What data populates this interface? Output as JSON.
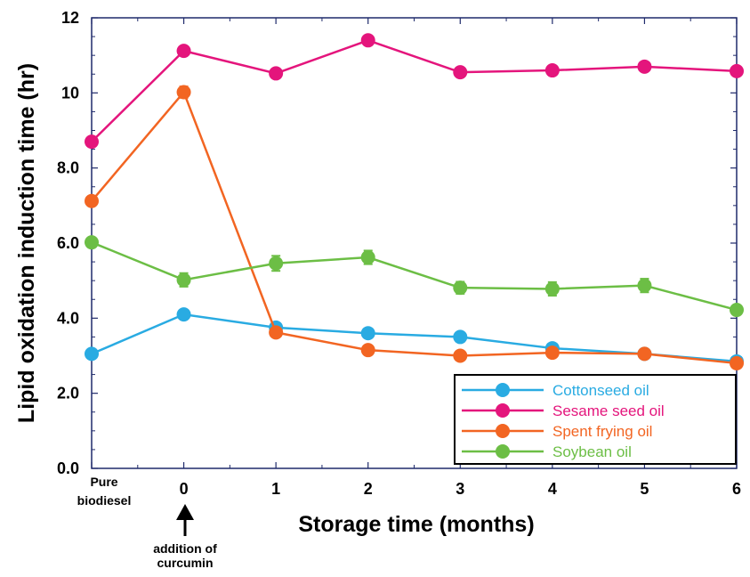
{
  "chart_data": {
    "type": "line",
    "title": "",
    "xlabel": "Storage time (months)",
    "ylabel": "Lipid oxidation induction time (hr)",
    "categories": [
      "Pure biodiesel",
      "0",
      "1",
      "2",
      "3",
      "4",
      "5",
      "6"
    ],
    "xlim": [
      -1,
      6
    ],
    "ylim": [
      0,
      12
    ],
    "yticks": [
      "0.0",
      "2.0",
      "4.0",
      "6.0",
      "8.0",
      "10",
      "12"
    ],
    "ytick_values": [
      0,
      2,
      4,
      6,
      8,
      10,
      12
    ],
    "grid": false,
    "legend_position": "bottom-right",
    "series": [
      {
        "name": "Cottonseed oil",
        "color": "#29abe2",
        "values": [
          3.05,
          4.1,
          3.75,
          3.6,
          3.5,
          3.2,
          3.05,
          2.85
        ],
        "errors": [
          0,
          0.1,
          0.1,
          0.1,
          0.1,
          0.1,
          0.08,
          0.08
        ]
      },
      {
        "name": "Sesame seed oil",
        "color": "#e4157c",
        "values": [
          8.7,
          11.12,
          10.52,
          11.4,
          10.55,
          10.6,
          10.7,
          10.58
        ],
        "errors": [
          0,
          0.1,
          0.1,
          0.1,
          0.1,
          0.1,
          0.1,
          0.1
        ]
      },
      {
        "name": "Spent frying oil",
        "color": "#f26522",
        "values": [
          7.12,
          10.02,
          3.62,
          3.15,
          3.0,
          3.08,
          3.05,
          2.8
        ],
        "errors": [
          0,
          0.15,
          0.1,
          0.1,
          0.1,
          0.12,
          0.1,
          0.1
        ]
      },
      {
        "name": "Soybean oil",
        "color": "#6cbe45",
        "values": [
          6.02,
          5.02,
          5.46,
          5.62,
          4.81,
          4.78,
          4.87,
          4.22
        ],
        "errors": [
          0,
          0.18,
          0.2,
          0.18,
          0.16,
          0.18,
          0.18,
          0.1
        ]
      }
    ],
    "annotation": {
      "text_lines": [
        "addition of",
        "curcumin"
      ],
      "at_category": "0"
    }
  }
}
